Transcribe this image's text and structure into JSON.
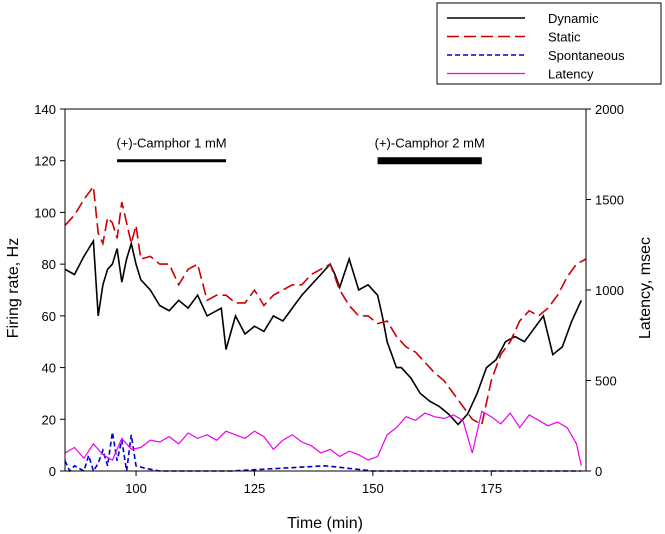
{
  "chart_data": {
    "type": "line",
    "xlabel": "Time (min)",
    "ylabel": "Firing rate, Hz",
    "y2label": "Latency, msec",
    "xlim": [
      85,
      195
    ],
    "ylim": [
      0,
      140
    ],
    "y2lim": [
      0,
      2000
    ],
    "xticks": [
      100,
      125,
      150,
      175
    ],
    "yticks": [
      0,
      20,
      40,
      60,
      80,
      100,
      120,
      140
    ],
    "y2ticks": [
      0,
      500,
      1000,
      1500,
      2000
    ],
    "grid": false,
    "legend_position": "top-right (outside plot)",
    "annotations": [
      {
        "label": "(+)-Camphor 1 mM",
        "x_start": 96,
        "x_end": 119,
        "y": 120
      },
      {
        "label": "(+)-Camphor 2 mM",
        "x_start": 151,
        "x_end": 173,
        "y": 120
      }
    ],
    "series": [
      {
        "name": "Dynamic",
        "axis": "left",
        "color": "#000000",
        "style": "solid",
        "x": [
          85,
          87,
          89,
          91,
          92,
          93,
          94,
          95,
          96,
          97,
          98,
          99,
          100,
          101,
          103,
          105,
          107,
          109,
          111,
          113,
          115,
          117,
          118,
          119,
          121,
          123,
          125,
          127,
          129,
          131,
          133,
          135,
          137,
          139,
          141,
          142,
          143,
          145,
          147,
          149,
          151,
          152,
          153,
          155,
          156,
          158,
          160,
          162,
          164,
          166,
          168,
          170,
          172,
          174,
          176,
          178,
          180,
          182,
          184,
          186,
          188,
          190,
          192,
          194
        ],
        "y": [
          78,
          76,
          83,
          89,
          60,
          72,
          78,
          80,
          86,
          73,
          82,
          88,
          80,
          74,
          70,
          64,
          62,
          66,
          63,
          68,
          60,
          62,
          63,
          47,
          60,
          53,
          56,
          54,
          60,
          58,
          63,
          68,
          72,
          76,
          80,
          76,
          71,
          82,
          70,
          72,
          68,
          60,
          50,
          40,
          40,
          36,
          30,
          27,
          25,
          22,
          18,
          22,
          30,
          40,
          43,
          50,
          52,
          50,
          55,
          60,
          45,
          48,
          58,
          66
        ]
      },
      {
        "name": "Static",
        "axis": "left",
        "color": "#cc0000",
        "style": "dashed",
        "x": [
          85,
          87,
          89,
          91,
          92,
          93,
          94,
          95,
          96,
          97,
          98,
          99,
          100,
          101,
          103,
          105,
          107,
          109,
          111,
          113,
          115,
          117,
          119,
          121,
          123,
          125,
          127,
          129,
          131,
          133,
          135,
          137,
          139,
          141,
          143,
          145,
          147,
          149,
          151,
          153,
          155,
          157,
          159,
          161,
          163,
          165,
          167,
          169,
          171,
          173,
          175,
          177,
          179,
          181,
          183,
          185,
          187,
          189,
          191,
          193,
          195
        ],
        "y": [
          95,
          99,
          105,
          110,
          92,
          88,
          98,
          96,
          90,
          104,
          96,
          88,
          95,
          82,
          83,
          80,
          80,
          72,
          78,
          80,
          66,
          68,
          68,
          65,
          65,
          70,
          64,
          68,
          70,
          72,
          72,
          76,
          78,
          80,
          70,
          64,
          60,
          60,
          57,
          58,
          52,
          48,
          46,
          42,
          38,
          35,
          30,
          25,
          20,
          18,
          35,
          45,
          50,
          58,
          62,
          60,
          63,
          68,
          75,
          80,
          82
        ]
      },
      {
        "name": "Spontaneous",
        "axis": "left",
        "color": "#0000cc",
        "style": "dashed",
        "x": [
          85,
          86,
          87,
          88,
          89,
          90,
          91,
          92,
          93,
          94,
          95,
          96,
          97,
          98,
          99,
          100,
          102,
          105,
          110,
          115,
          120,
          130,
          140,
          145,
          150,
          160,
          170,
          180,
          190,
          194
        ],
        "y": [
          4,
          0,
          2,
          1,
          0,
          6,
          0,
          3,
          8,
          2,
          15,
          4,
          12,
          0,
          14,
          2,
          1,
          0,
          0,
          0,
          0,
          1,
          2,
          1,
          0,
          0,
          0,
          0,
          0,
          0
        ]
      },
      {
        "name": "Latency",
        "axis": "right",
        "color": "#ee00ee",
        "style": "solid",
        "x": [
          85,
          87,
          89,
          91,
          93,
          95,
          97,
          99,
          101,
          103,
          105,
          107,
          109,
          111,
          113,
          115,
          117,
          119,
          121,
          123,
          125,
          127,
          129,
          131,
          133,
          135,
          137,
          139,
          141,
          143,
          145,
          147,
          149,
          151,
          153,
          155,
          157,
          159,
          161,
          163,
          165,
          167,
          169,
          171,
          173,
          175,
          177,
          179,
          181,
          183,
          185,
          187,
          189,
          191,
          193,
          194
        ],
        "y": [
          100,
          130,
          70,
          150,
          90,
          60,
          180,
          120,
          130,
          170,
          160,
          190,
          150,
          210,
          180,
          200,
          170,
          220,
          200,
          180,
          220,
          190,
          120,
          170,
          200,
          160,
          140,
          100,
          120,
          80,
          110,
          90,
          60,
          80,
          200,
          240,
          300,
          280,
          320,
          300,
          290,
          310,
          280,
          100,
          330,
          300,
          260,
          320,
          240,
          310,
          280,
          250,
          270,
          240,
          150,
          30
        ]
      }
    ]
  }
}
